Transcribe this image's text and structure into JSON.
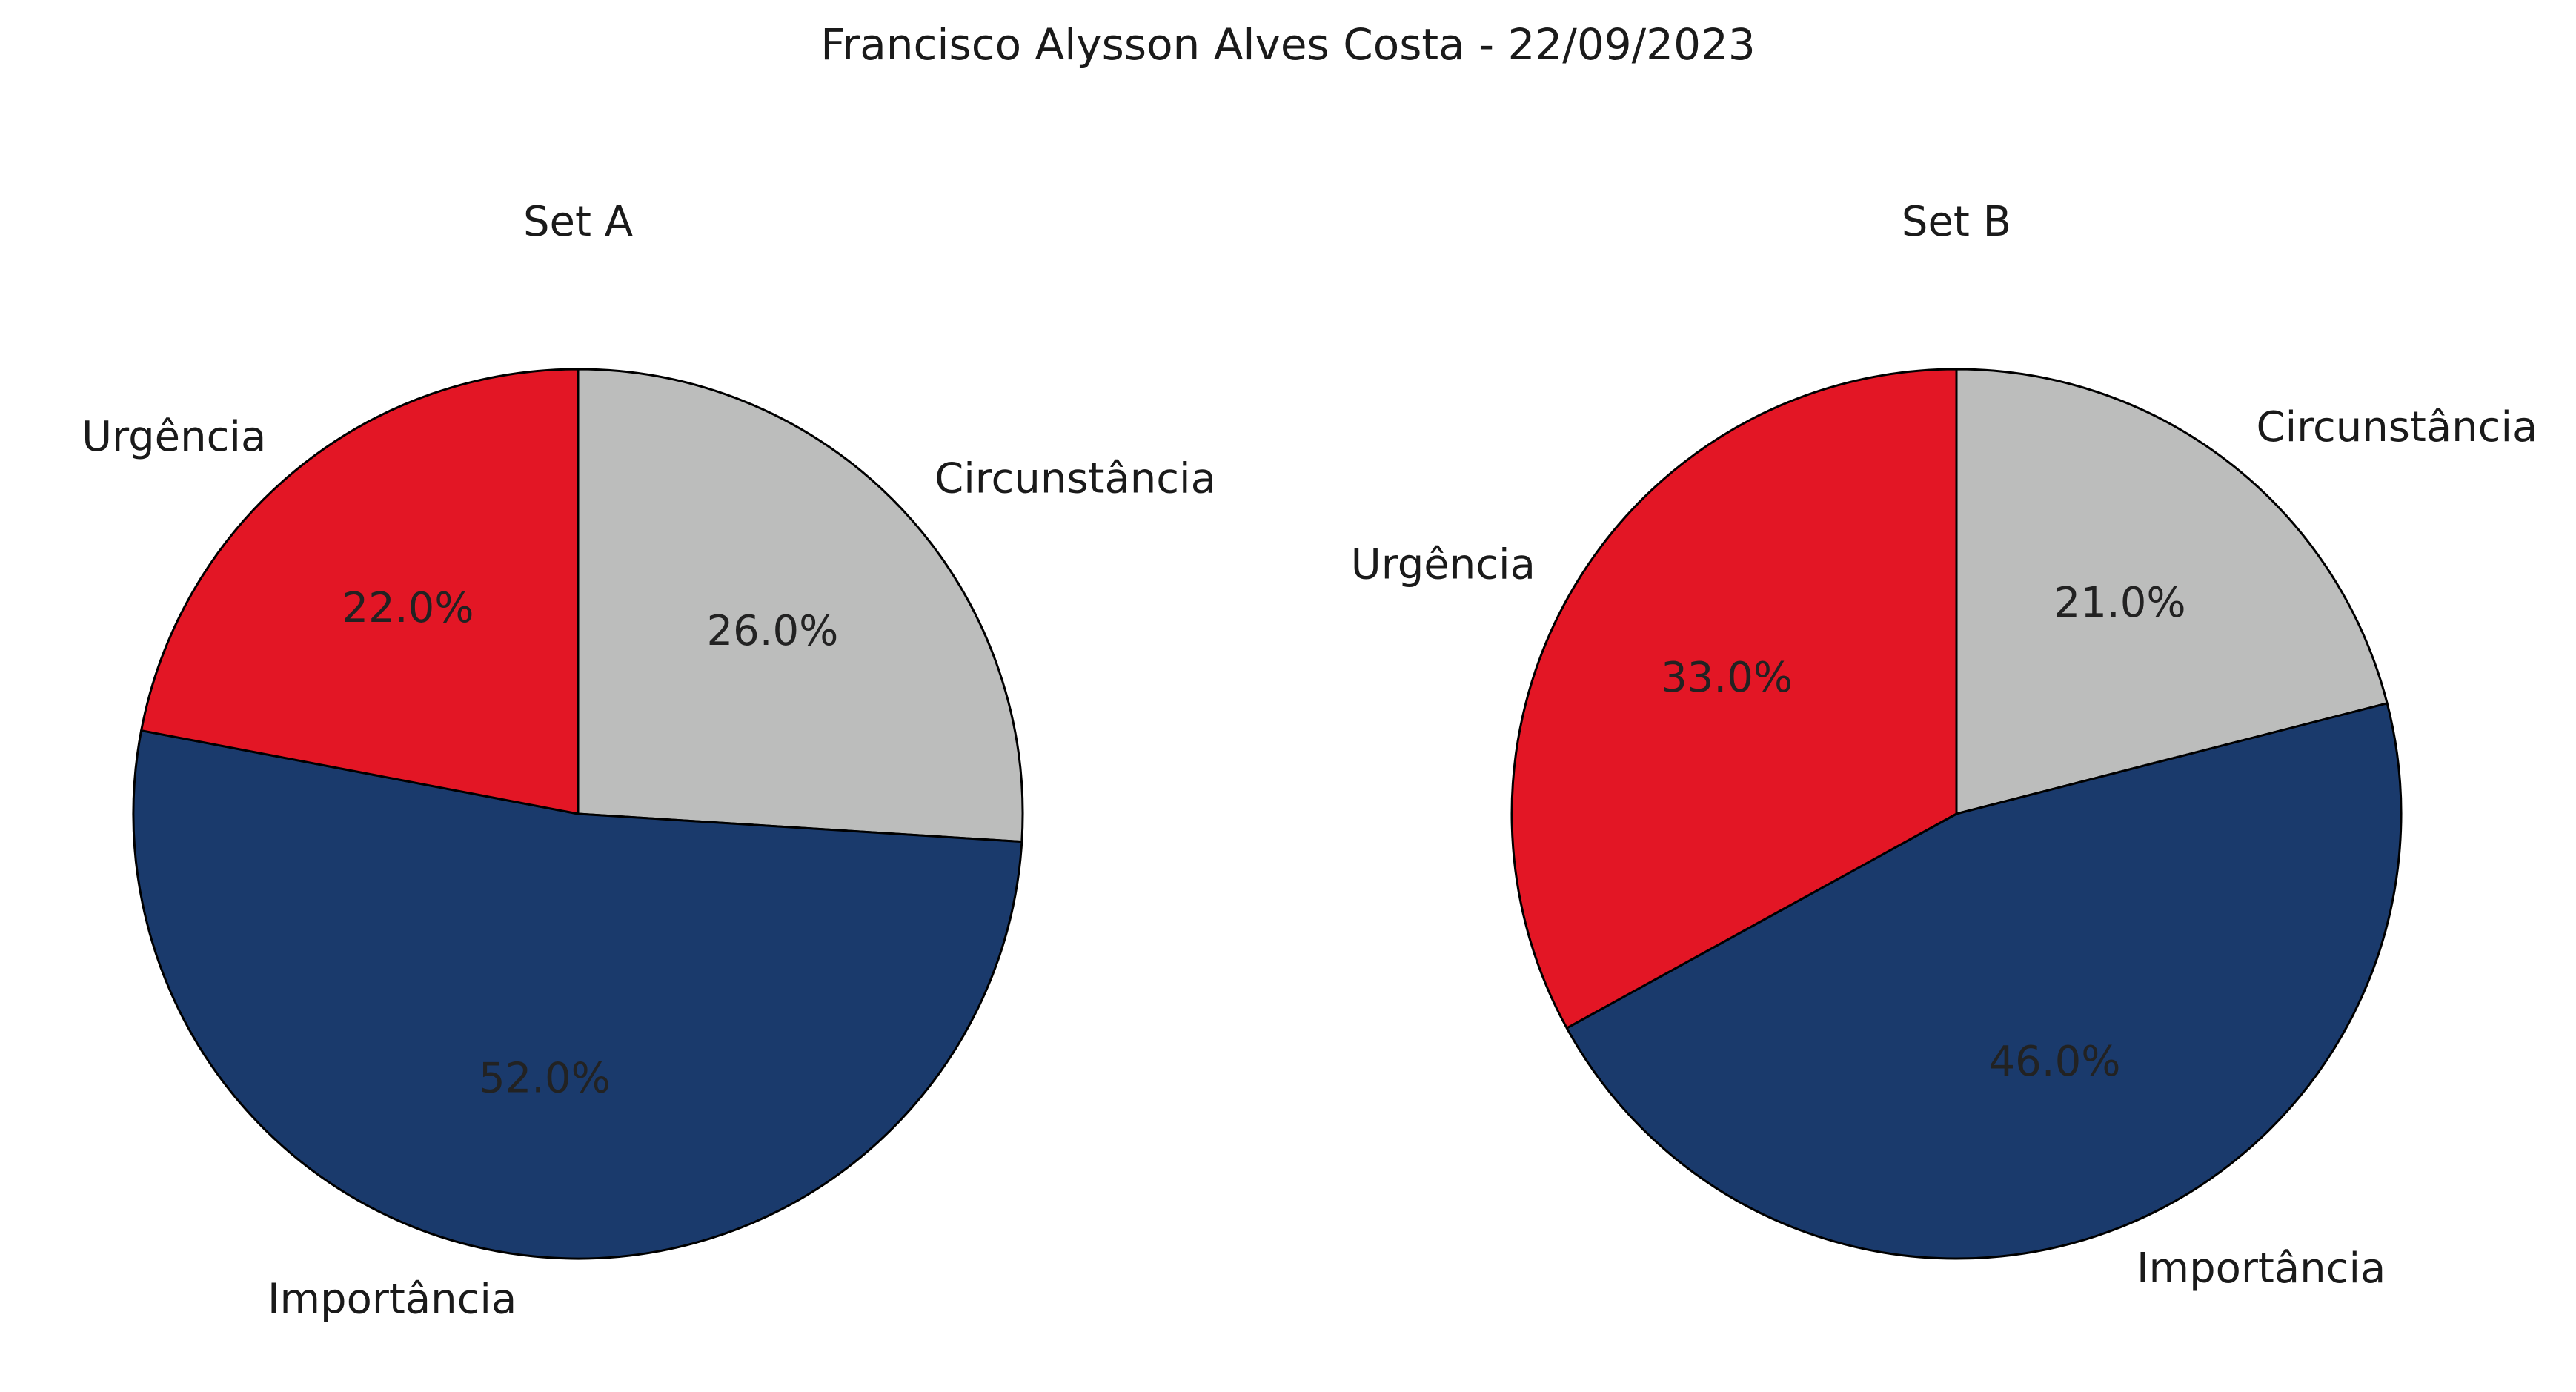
{
  "figure": {
    "title": "Francisco Alysson Alves Costa - 22/09/2023"
  },
  "colors": {
    "Urgência": "#e31625",
    "Circunstância": "#bcbdbc",
    "Importância": "#1a3a6c"
  },
  "chart_data": [
    {
      "type": "pie",
      "title": "Set A",
      "start_angle": "90",
      "direction": "clockwise",
      "slices": [
        {
          "label": "Circunstância",
          "value": 26.0,
          "pct_text": "26.0%"
        },
        {
          "label": "Importância",
          "value": 52.0,
          "pct_text": "52.0%"
        },
        {
          "label": "Urgência",
          "value": 22.0,
          "pct_text": "22.0%"
        }
      ]
    },
    {
      "type": "pie",
      "title": "Set B",
      "start_angle": "90",
      "direction": "clockwise",
      "slices": [
        {
          "label": "Circunstância",
          "value": 21.0,
          "pct_text": "21.0%"
        },
        {
          "label": "Importância",
          "value": 46.0,
          "pct_text": "46.0%"
        },
        {
          "label": "Urgência",
          "value": 33.0,
          "pct_text": "33.0%"
        }
      ]
    }
  ]
}
